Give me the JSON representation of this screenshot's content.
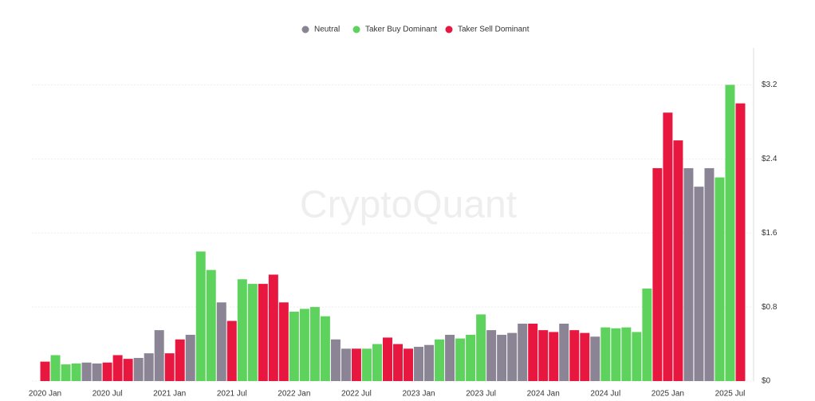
{
  "chart_data": {
    "type": "bar",
    "watermark": "CryptoQuant",
    "categories": [
      "2020 Jan",
      null,
      null,
      null,
      null,
      null,
      "2020 Jul",
      null,
      null,
      null,
      null,
      null,
      "2021 Jan",
      null,
      null,
      null,
      null,
      null,
      "2021 Jul",
      null,
      null,
      null,
      null,
      null,
      "2022 Jan",
      null,
      null,
      null,
      null,
      null,
      "2022 Jul",
      null,
      null,
      null,
      null,
      null,
      "2023 Jan",
      null,
      null,
      null,
      null,
      null,
      "2023 Jul",
      null,
      null,
      null,
      null,
      null,
      "2024 Jan",
      null,
      null,
      null,
      null,
      null,
      "2024 Jul",
      null,
      null,
      null,
      null,
      null,
      "2025 Jan",
      null,
      null,
      null,
      null,
      null,
      "2025 Jul",
      null
    ],
    "series": [
      {
        "name": "Neutral",
        "color": "#8a8494",
        "values": [
          null,
          null,
          null,
          null,
          0.2,
          0.19,
          null,
          null,
          null,
          0.25,
          0.3,
          0.55,
          null,
          null,
          0.5,
          null,
          null,
          0.85,
          null,
          null,
          null,
          null,
          null,
          null,
          null,
          null,
          null,
          null,
          0.45,
          0.35,
          null,
          null,
          null,
          null,
          null,
          null,
          0.37,
          0.39,
          null,
          0.5,
          null,
          null,
          null,
          0.55,
          0.5,
          0.52,
          0.62,
          null,
          null,
          null,
          0.62,
          null,
          null,
          0.48,
          null,
          null,
          null,
          null,
          null,
          null,
          null,
          null,
          2.3,
          2.1,
          2.3,
          null,
          null,
          null
        ]
      },
      {
        "name": "Taker Buy Dominant",
        "color": "#5dd35d",
        "values": [
          null,
          0.28,
          0.18,
          0.19,
          null,
          null,
          null,
          null,
          null,
          null,
          null,
          null,
          null,
          null,
          null,
          1.4,
          1.2,
          null,
          null,
          1.1,
          1.05,
          null,
          null,
          null,
          0.75,
          0.78,
          0.8,
          0.7,
          null,
          null,
          null,
          0.35,
          0.4,
          null,
          null,
          null,
          null,
          null,
          0.45,
          null,
          0.46,
          0.5,
          0.72,
          null,
          null,
          null,
          null,
          null,
          null,
          null,
          null,
          null,
          null,
          null,
          0.58,
          0.57,
          0.58,
          0.53,
          1.0,
          null,
          null,
          null,
          null,
          null,
          null,
          2.2,
          3.2,
          null
        ]
      },
      {
        "name": "Taker Sell Dominant",
        "color": "#e8173f",
        "values": [
          0.21,
          null,
          null,
          null,
          null,
          null,
          0.2,
          0.28,
          0.24,
          null,
          null,
          null,
          0.3,
          0.45,
          null,
          null,
          null,
          null,
          0.65,
          null,
          null,
          1.05,
          1.15,
          0.85,
          null,
          null,
          null,
          null,
          null,
          null,
          0.35,
          null,
          null,
          0.47,
          0.4,
          0.35,
          null,
          null,
          null,
          null,
          null,
          null,
          null,
          null,
          null,
          null,
          null,
          0.62,
          0.55,
          0.53,
          null,
          0.55,
          0.52,
          null,
          null,
          null,
          null,
          null,
          null,
          2.3,
          2.9,
          2.6,
          null,
          null,
          null,
          null,
          null,
          3.0
        ]
      }
    ],
    "ylim": [
      0,
      3.6
    ],
    "yticks": [
      {
        "value": 0,
        "label": "$0"
      },
      {
        "value": 0.8,
        "label": "$0.8"
      },
      {
        "value": 1.6,
        "label": "$1.6"
      },
      {
        "value": 2.4,
        "label": "$2.4"
      },
      {
        "value": 3.2,
        "label": "$3.2"
      }
    ],
    "grid": true,
    "legend": "top"
  }
}
